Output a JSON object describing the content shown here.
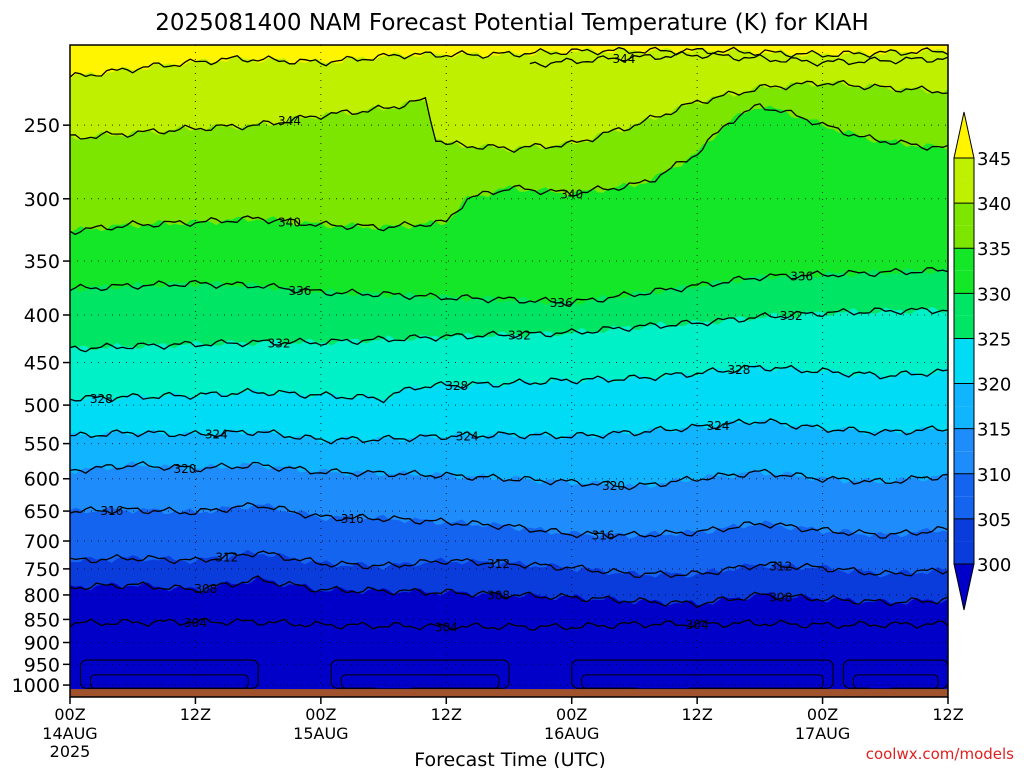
{
  "chart_data": {
    "type": "heatmap",
    "title": "2025081400 NAM Forecast Potential Temperature (K) for KIAH",
    "xlabel": "Forecast Time (UTC)",
    "ylabel": "",
    "y_scale": "log-pressure",
    "y_unit": "hPa",
    "ylim": [
      1030,
      205
    ],
    "xlim_hours": [
      0,
      84
    ],
    "y_ticks": [
      250,
      300,
      350,
      400,
      450,
      500,
      550,
      600,
      650,
      700,
      750,
      800,
      850,
      900,
      950,
      1000
    ],
    "x_ticks": [
      {
        "hour": 0,
        "time": "00Z",
        "date": "14AUG",
        "year": "2025"
      },
      {
        "hour": 12,
        "time": "12Z",
        "date": "",
        "year": ""
      },
      {
        "hour": 24,
        "time": "00Z",
        "date": "15AUG",
        "year": ""
      },
      {
        "hour": 36,
        "time": "12Z",
        "date": "",
        "year": ""
      },
      {
        "hour": 48,
        "time": "00Z",
        "date": "16AUG",
        "year": ""
      },
      {
        "hour": 60,
        "time": "12Z",
        "date": "",
        "year": ""
      },
      {
        "hour": 72,
        "time": "00Z",
        "date": "17AUG",
        "year": ""
      },
      {
        "hour": 84,
        "time": "12Z",
        "date": "",
        "year": ""
      }
    ],
    "colorbar": {
      "levels": [
        300,
        305,
        310,
        315,
        320,
        325,
        330,
        335,
        340,
        345
      ],
      "colors": [
        "#0000c8",
        "#0a3cdc",
        "#1464f0",
        "#1e8cfa",
        "#10b4ff",
        "#00dcf5",
        "#00f0c8",
        "#00e664",
        "#14e628",
        "#7de600",
        "#bef000",
        "#fff500"
      ],
      "extend": "both"
    },
    "isentropes": [
      {
        "theta": 304,
        "p": [
          [
            0,
            858
          ],
          [
            12,
            855
          ],
          [
            18,
            855
          ],
          [
            24,
            862
          ],
          [
            36,
            865
          ],
          [
            48,
            866
          ],
          [
            54,
            860
          ],
          [
            60,
            860
          ],
          [
            66,
            858
          ],
          [
            72,
            862
          ],
          [
            84,
            860
          ]
        ],
        "label": true,
        "label_hours": [
          12,
          36,
          60
        ]
      },
      {
        "theta": 308,
        "p": [
          [
            0,
            785
          ],
          [
            6,
            780
          ],
          [
            12,
            790
          ],
          [
            18,
            770
          ],
          [
            24,
            790
          ],
          [
            30,
            792
          ],
          [
            36,
            795
          ],
          [
            42,
            800
          ],
          [
            48,
            805
          ],
          [
            54,
            812
          ],
          [
            60,
            818
          ],
          [
            66,
            800
          ],
          [
            72,
            808
          ],
          [
            78,
            815
          ],
          [
            84,
            810
          ]
        ],
        "label": true,
        "label_hours": [
          13,
          41,
          68
        ]
      },
      {
        "theta": 312,
        "p": [
          [
            0,
            735
          ],
          [
            6,
            730
          ],
          [
            12,
            735
          ],
          [
            18,
            720
          ],
          [
            24,
            740
          ],
          [
            30,
            745
          ],
          [
            36,
            735
          ],
          [
            42,
            740
          ],
          [
            48,
            748
          ],
          [
            54,
            760
          ],
          [
            60,
            760
          ],
          [
            66,
            742
          ],
          [
            72,
            748
          ],
          [
            78,
            760
          ],
          [
            84,
            752
          ]
        ],
        "label": true,
        "label_hours": [
          15,
          41,
          68
        ]
      },
      {
        "theta": 316,
        "p": [
          [
            0,
            650
          ],
          [
            6,
            648
          ],
          [
            12,
            652
          ],
          [
            18,
            640
          ],
          [
            24,
            660
          ],
          [
            30,
            662
          ],
          [
            36,
            668
          ],
          [
            42,
            675
          ],
          [
            48,
            688
          ],
          [
            54,
            690
          ],
          [
            60,
            685
          ],
          [
            66,
            670
          ],
          [
            72,
            682
          ],
          [
            78,
            690
          ],
          [
            84,
            680
          ]
        ],
        "label": true,
        "label_hours": [
          4,
          27,
          51
        ]
      },
      {
        "theta": 320,
        "p": [
          [
            0,
            588
          ],
          [
            6,
            580
          ],
          [
            12,
            585
          ],
          [
            18,
            580
          ],
          [
            24,
            590
          ],
          [
            30,
            592
          ],
          [
            36,
            595
          ],
          [
            42,
            600
          ],
          [
            48,
            605
          ],
          [
            54,
            612
          ],
          [
            60,
            600
          ],
          [
            66,
            590
          ],
          [
            72,
            600
          ],
          [
            78,
            605
          ],
          [
            84,
            595
          ]
        ],
        "label": true,
        "label_hours": [
          11,
          52
        ]
      },
      {
        "theta": 324,
        "p": [
          [
            0,
            540
          ],
          [
            6,
            535
          ],
          [
            12,
            538
          ],
          [
            18,
            534
          ],
          [
            24,
            545
          ],
          [
            30,
            544
          ],
          [
            36,
            540
          ],
          [
            42,
            538
          ],
          [
            48,
            540
          ],
          [
            54,
            535
          ],
          [
            60,
            528
          ],
          [
            66,
            520
          ],
          [
            72,
            530
          ],
          [
            78,
            535
          ],
          [
            84,
            530
          ]
        ],
        "label": true,
        "label_hours": [
          14,
          38,
          62
        ]
      },
      {
        "theta": 328,
        "p": [
          [
            0,
            492
          ],
          [
            6,
            490
          ],
          [
            12,
            488
          ],
          [
            18,
            484
          ],
          [
            24,
            488
          ],
          [
            30,
            492
          ],
          [
            33,
            478
          ],
          [
            36,
            476
          ],
          [
            42,
            474
          ],
          [
            48,
            470
          ],
          [
            54,
            468
          ],
          [
            60,
            462
          ],
          [
            66,
            455
          ],
          [
            72,
            460
          ],
          [
            78,
            465
          ],
          [
            84,
            460
          ]
        ],
        "label": true,
        "label_hours": [
          3,
          37,
          64
        ]
      },
      {
        "theta": 332,
        "p": [
          [
            0,
            435
          ],
          [
            6,
            432
          ],
          [
            12,
            430
          ],
          [
            18,
            428
          ],
          [
            24,
            428
          ],
          [
            30,
            425
          ],
          [
            36,
            422
          ],
          [
            42,
            420
          ],
          [
            48,
            418
          ],
          [
            54,
            412
          ],
          [
            60,
            408
          ],
          [
            66,
            402
          ],
          [
            72,
            398
          ],
          [
            78,
            396
          ],
          [
            84,
            395
          ]
        ],
        "label": true,
        "label_hours": [
          20,
          43,
          69
        ]
      },
      {
        "theta": 336,
        "p": [
          [
            0,
            375
          ],
          [
            6,
            372
          ],
          [
            12,
            370
          ],
          [
            18,
            372
          ],
          [
            24,
            378
          ],
          [
            30,
            380
          ],
          [
            36,
            383
          ],
          [
            42,
            385
          ],
          [
            48,
            388
          ],
          [
            54,
            380
          ],
          [
            60,
            372
          ],
          [
            66,
            364
          ],
          [
            72,
            362
          ],
          [
            78,
            360
          ],
          [
            84,
            358
          ]
        ],
        "label": true,
        "label_hours": [
          22,
          47,
          70
        ]
      },
      {
        "theta": 340,
        "p": [
          [
            0,
            325
          ],
          [
            6,
            320
          ],
          [
            12,
            318
          ],
          [
            18,
            315
          ],
          [
            24,
            320
          ],
          [
            30,
            322
          ],
          [
            36,
            318
          ],
          [
            38,
            300
          ],
          [
            42,
            292
          ],
          [
            48,
            296
          ],
          [
            54,
            290
          ],
          [
            56,
            285
          ],
          [
            60,
            268
          ],
          [
            63,
            248
          ],
          [
            66,
            238
          ],
          [
            70,
            245
          ],
          [
            72,
            250
          ],
          [
            76,
            258
          ],
          [
            80,
            262
          ],
          [
            84,
            265
          ]
        ],
        "label": true,
        "label_hours": [
          21,
          48
        ]
      },
      {
        "theta": 344,
        "p": [
          [
            0,
            258
          ],
          [
            6,
            255
          ],
          [
            12,
            252
          ],
          [
            18,
            250
          ],
          [
            24,
            244
          ],
          [
            30,
            240
          ],
          [
            34,
            235
          ],
          [
            35,
            258
          ],
          [
            36,
            262
          ],
          [
            42,
            265
          ],
          [
            48,
            262
          ],
          [
            54,
            250
          ],
          [
            60,
            236
          ],
          [
            66,
            228
          ],
          [
            72,
            225
          ],
          [
            78,
            228
          ],
          [
            84,
            230
          ]
        ],
        "label": true,
        "label_hours": [
          21
        ]
      },
      {
        "theta": 344,
        "p": [
          [
            44,
            215
          ],
          [
            52,
            212
          ],
          [
            60,
            210
          ],
          [
            66,
            212
          ],
          [
            72,
            214
          ],
          [
            84,
            212
          ]
        ],
        "label": true,
        "label_hours": [
          53
        ]
      },
      {
        "theta": 348,
        "p": [
          [
            0,
            222
          ],
          [
            8,
            216
          ],
          [
            16,
            212
          ],
          [
            24,
            214
          ],
          [
            32,
            210
          ],
          [
            40,
            210
          ],
          [
            50,
            208
          ],
          [
            62,
            208
          ],
          [
            72,
            210
          ],
          [
            84,
            208
          ]
        ],
        "label": false,
        "label_hours": []
      }
    ],
    "near_surface_pockets_hours": [
      [
        1,
        18
      ],
      [
        25,
        42
      ],
      [
        48,
        73
      ],
      [
        74,
        84
      ]
    ],
    "surface": {
      "pressure_hPa": 1010,
      "color": "#a0522d"
    },
    "credit": "coolwx.com/models"
  }
}
